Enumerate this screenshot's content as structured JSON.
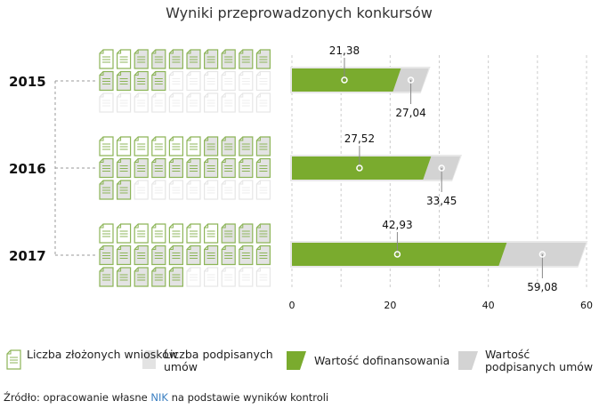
{
  "chart_data": {
    "type": "bar",
    "title": "Wyniki przeprowadzonych konkursów",
    "categories": [
      "2015",
      "2016",
      "2017"
    ],
    "icon_counts": {
      "submitted_applications": [
        14,
        22,
        25
      ],
      "signed_contracts": [
        12,
        16,
        18
      ],
      "grid_capacity": 30
    },
    "series": [
      {
        "name": "Wartość dofinansowania",
        "values": [
          21.38,
          27.52,
          42.93
        ],
        "labels": [
          "21,38",
          "27,52",
          "42,93"
        ],
        "color": "#7aab2e"
      },
      {
        "name": "Wartość podpisanych umów",
        "values": [
          27.04,
          33.45,
          59.08
        ],
        "labels": [
          "27,04",
          "33,45",
          "59,08"
        ],
        "color": "#d3d3d3"
      }
    ],
    "xlim": [
      0,
      60
    ],
    "xticks": [
      "0",
      "20",
      "40",
      "60"
    ],
    "grid": true,
    "legend": [
      {
        "label": "Liczba złożonych wniosków",
        "icon": "document-outline-icon"
      },
      {
        "label": "Liczba podpisanych umów",
        "icon": "document-grey-icon"
      },
      {
        "label": "Wartość dofinansowania",
        "icon": "green-parallelogram"
      },
      {
        "label": "Wartość podpisanych umów",
        "icon": "grey-parallelogram"
      }
    ],
    "legend_placement": "bottom"
  },
  "source": {
    "prefix": "Źródło: opracowanie własne ",
    "org": "NIK",
    "suffix": " na podstawie wyników kontroli"
  }
}
